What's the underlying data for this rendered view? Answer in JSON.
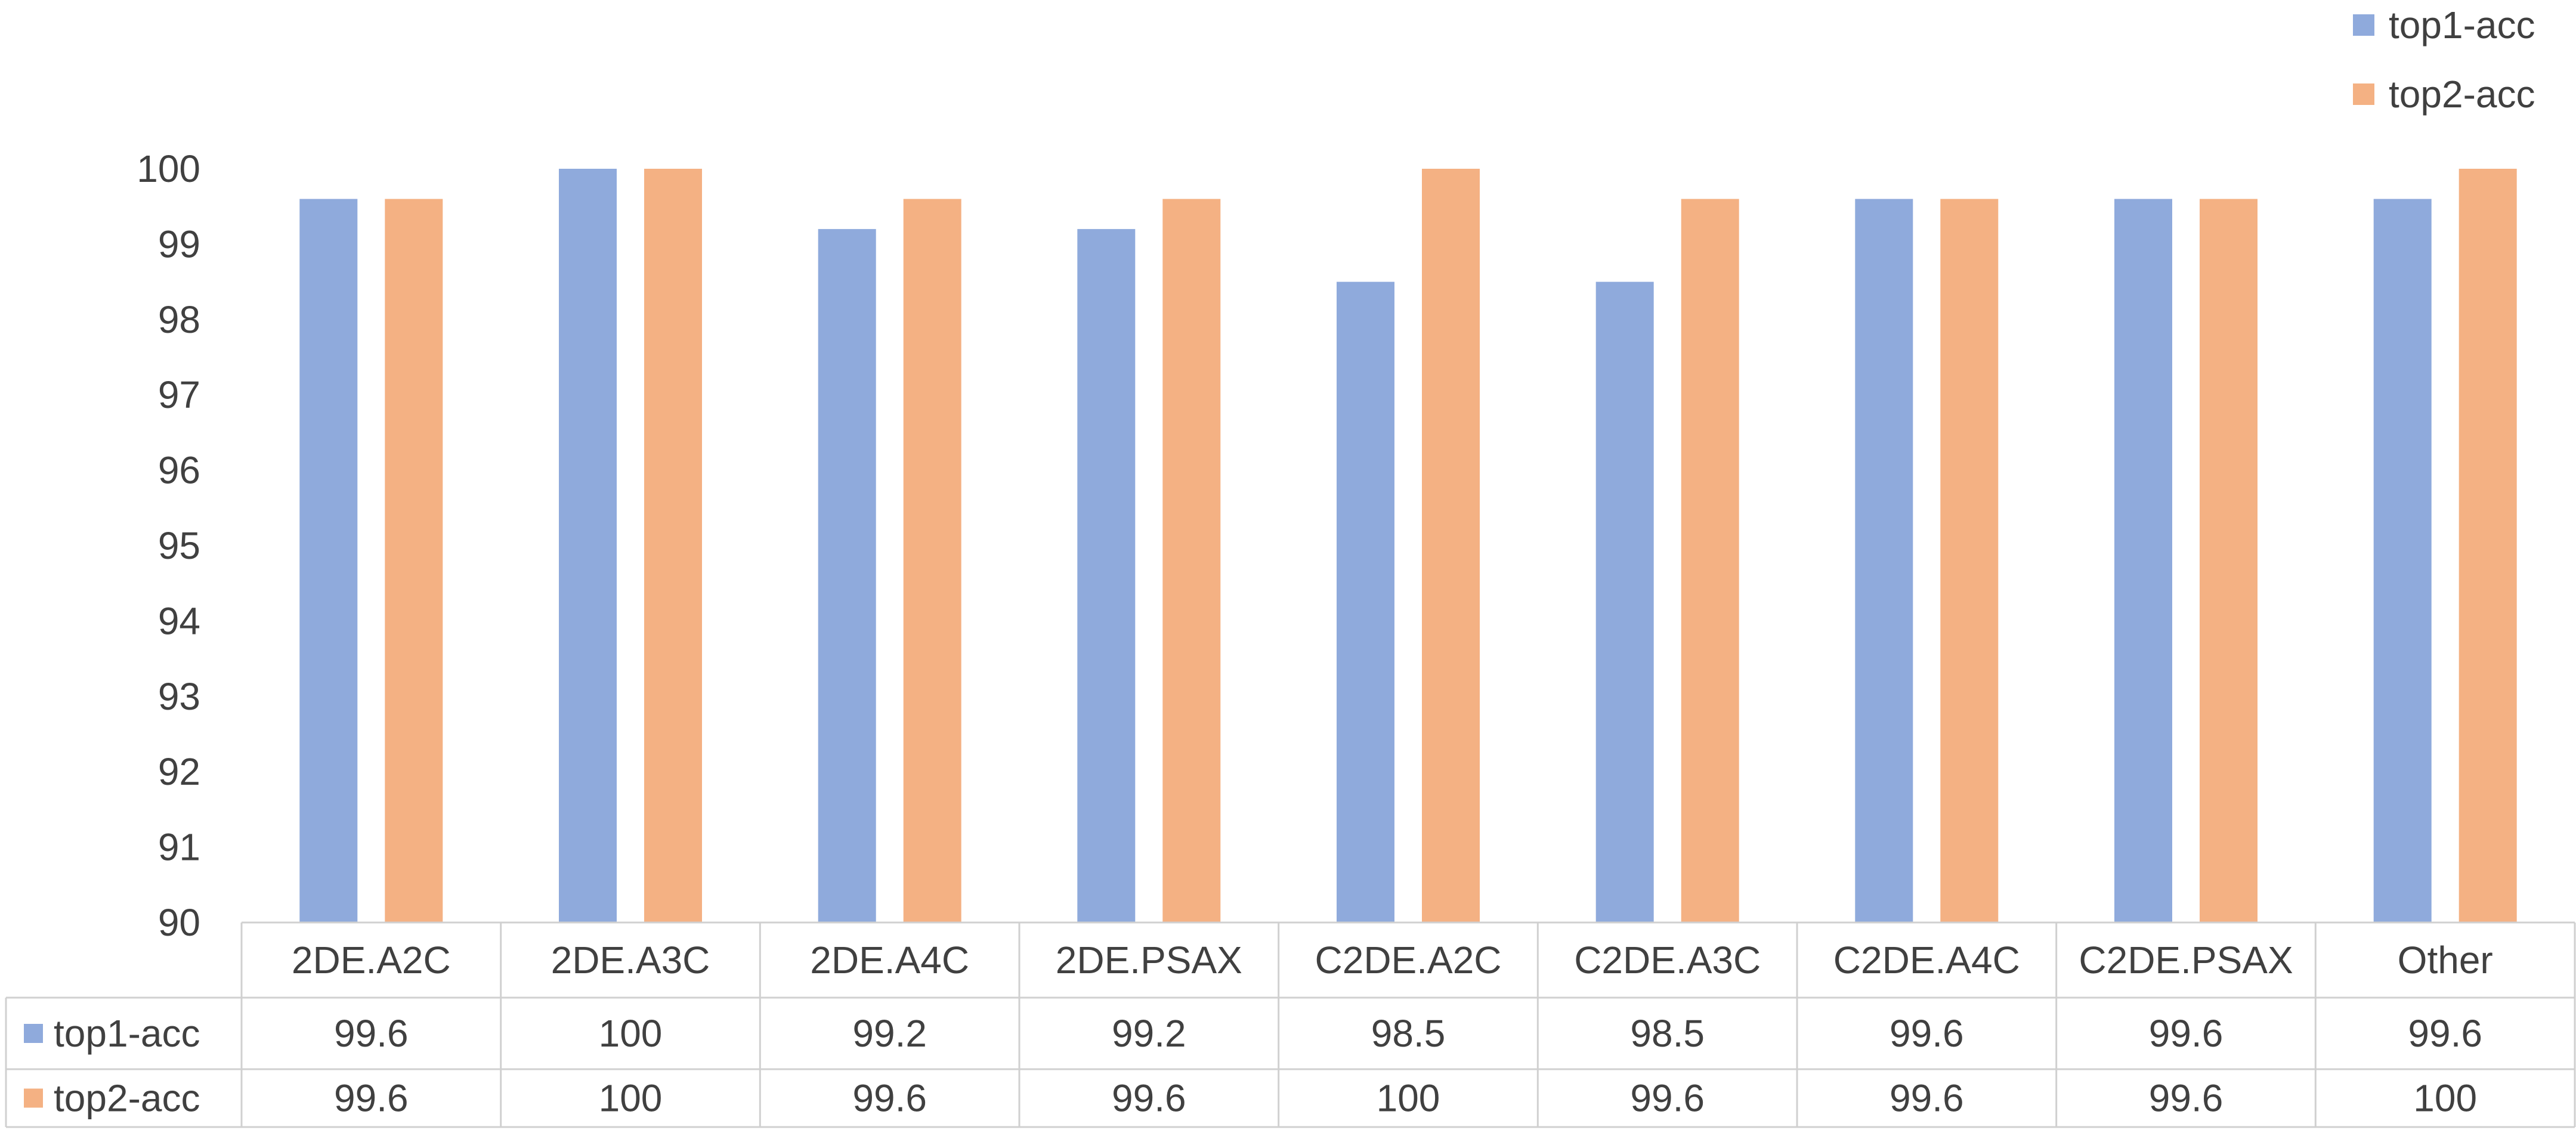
{
  "chart_data": {
    "type": "bar",
    "title": "",
    "xlabel": "",
    "ylabel": "",
    "ylim": [
      90,
      100
    ],
    "yticks": [
      "90",
      "91",
      "92",
      "93",
      "94",
      "95",
      "96",
      "97",
      "98",
      "99",
      "100"
    ],
    "grid": false,
    "legend_position": "top-right",
    "has_data_table": true,
    "categories": [
      "2DE.A2C",
      "2DE.A3C",
      "2DE.A4C",
      "2DE.PSAX",
      "C2DE.A2C",
      "C2DE.A3C",
      "C2DE.A4C",
      "C2DE.PSAX",
      "Other"
    ],
    "series": [
      {
        "name": "top1-acc",
        "color": "#8faadc",
        "values": [
          99.6,
          100,
          99.2,
          99.2,
          98.5,
          98.5,
          99.6,
          99.6,
          99.6
        ],
        "labels": [
          "99.6",
          "100",
          "99.2",
          "99.2",
          "98.5",
          "98.5",
          "99.6",
          "99.6",
          "99.6"
        ]
      },
      {
        "name": "top2-acc",
        "color": "#f4b183",
        "values": [
          99.6,
          100,
          99.6,
          99.6,
          100,
          99.6,
          99.6,
          99.6,
          100
        ],
        "labels": [
          "99.6",
          "100",
          "99.6",
          "99.6",
          "100",
          "99.6",
          "99.6",
          "99.6",
          "100"
        ]
      }
    ]
  }
}
